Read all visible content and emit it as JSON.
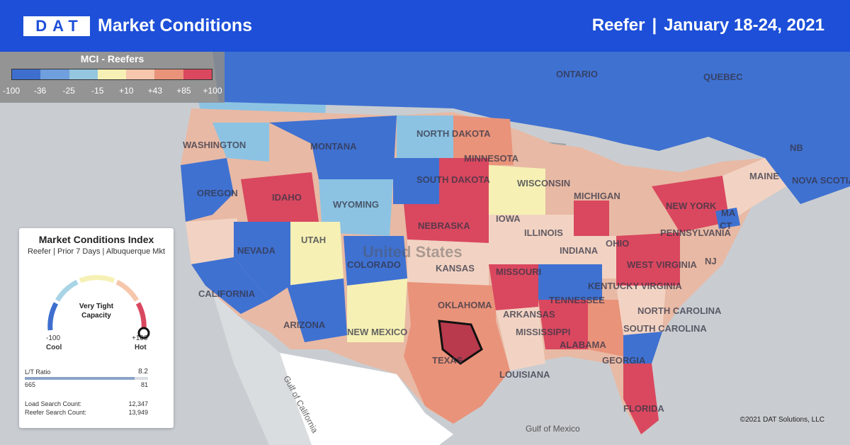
{
  "header": {
    "logo": "DAT",
    "title": "Market Conditions",
    "equipment": "Reefer",
    "separator": "|",
    "date_range": "January 18-24, 2021"
  },
  "legend": {
    "title": "MCI - Reefers",
    "colors": [
      "#3e6fcf",
      "#6f9fdc",
      "#95c6e0",
      "#f6f0b4",
      "#f6c7ac",
      "#e9937a",
      "#d9485f"
    ],
    "ticks": [
      "-100",
      "-36",
      "-25",
      "-15",
      "+10",
      "+43",
      "+85",
      "+100"
    ]
  },
  "map": {
    "state_labels": [
      "WASHINGTON",
      "OREGON",
      "CALIFORNIA",
      "NEVADA",
      "IDAHO",
      "MONTANA",
      "WYOMING",
      "UTAH",
      "ARIZONA",
      "COLORADO",
      "NEW MEXICO",
      "NORTH DAKOTA",
      "SOUTH DAKOTA",
      "NEBRASKA",
      "KANSAS",
      "OKLAHOMA",
      "TEXAS",
      "MINNESOTA",
      "IOWA",
      "MISSOURI",
      "ARKANSAS",
      "LOUISIANA",
      "WISCONSIN",
      "ILLINOIS",
      "MICHIGAN",
      "INDIANA",
      "OHIO",
      "KENTUCKY",
      "TENNESSEE",
      "MISSISSIPPI",
      "ALABAMA",
      "GEORGIA",
      "FLORIDA",
      "SOUTH CAROLINA",
      "NORTH CAROLINA",
      "VIRGINIA",
      "WEST VIRGINIA",
      "PENNSYLVANIA",
      "NEW YORK",
      "MAINE",
      "MA",
      "CT",
      "NJ",
      "ONTARIO",
      "QUEBEC",
      "NB",
      "NOVA SCOTIA"
    ],
    "country_label": "United States",
    "water_labels": [
      "Gulf of California",
      "Gulf of Mexico"
    ],
    "highlighted_market": "Albuquerque"
  },
  "card": {
    "title": "Market Conditions Index",
    "subtitle": "Reefer | Prior 7 Days | Albuquerque Mkt",
    "status_line1": "Very Tight",
    "status_line2": "Capacity",
    "min_value": "-100",
    "max_value": "+100",
    "min_label": "Cool",
    "max_label": "Hot",
    "gauge_level": 1.0,
    "lt_label": "L/T Ratio",
    "lt_ratio": "8.2",
    "lt_loads": "665",
    "lt_trucks": "81",
    "lt_fill_fraction": 0.89,
    "load_search_label": "Load Search Count:",
    "load_search_value": "12,347",
    "reefer_search_label": "Reefer Search Count:",
    "reefer_search_value": "13,949"
  },
  "footer": {
    "copyright": "©2021 DAT Solutions, LLC"
  }
}
